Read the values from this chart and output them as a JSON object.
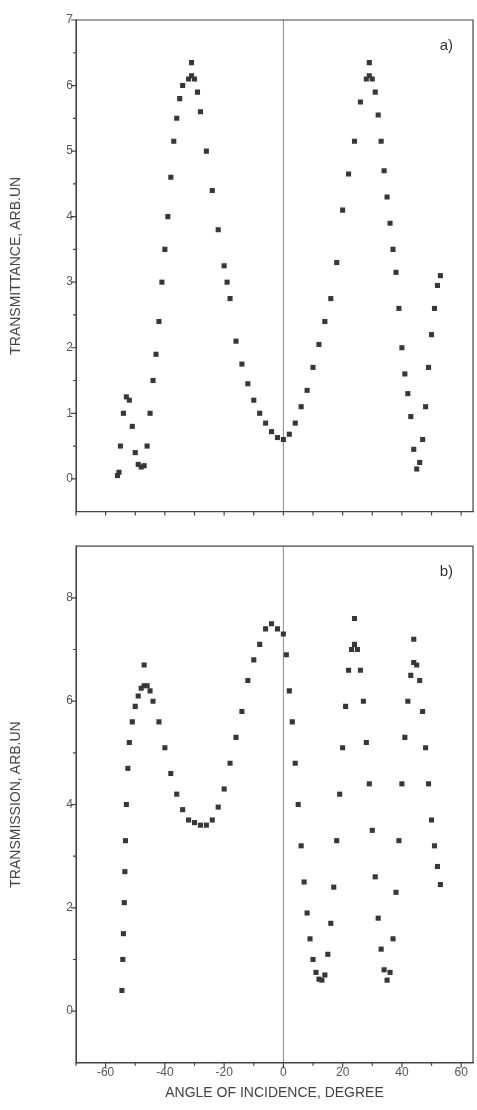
{
  "chart_data": [
    {
      "type": "scatter",
      "ylabel": "TRANSMITTANCE, ARB.UN",
      "annotations": [
        "a)"
      ],
      "marker": "square",
      "color": "#3a3636",
      "tick_labels": "y",
      "xlim": [
        -70,
        64
      ],
      "ylim": [
        -0.5,
        7
      ],
      "xticks": [
        {
          "value": -70,
          "label": null
        },
        {
          "value": -60,
          "label": null
        },
        {
          "value": -50,
          "label": null
        },
        {
          "value": -40,
          "label": null
        },
        {
          "value": -30,
          "label": null
        },
        {
          "value": -20,
          "label": null
        },
        {
          "value": -10,
          "label": null
        },
        {
          "value": 0,
          "label": null
        },
        {
          "value": 10,
          "label": null
        },
        {
          "value": 20,
          "label": null
        },
        {
          "value": 30,
          "label": null
        },
        {
          "value": 40,
          "label": null
        },
        {
          "value": 50,
          "label": null
        },
        {
          "value": 60,
          "label": null
        }
      ],
      "yticks": [
        0,
        {
          "value": 0.5,
          "label": null
        },
        1,
        {
          "value": 1.5,
          "label": null
        },
        2,
        {
          "value": 2.5,
          "label": null
        },
        3,
        {
          "value": 3.5,
          "label": null
        },
        4,
        {
          "value": 4.5,
          "label": null
        },
        5,
        {
          "value": 5.5,
          "label": null
        },
        6,
        {
          "value": 6.5,
          "label": null
        },
        7
      ],
      "ref_lines": [
        {
          "axis": "x",
          "value": 0,
          "color": "#8a8a8a"
        }
      ],
      "x": [
        -56,
        -55.5,
        -55,
        -54,
        -53,
        -52,
        -51,
        -50,
        -49,
        -48,
        -47,
        -46,
        -45,
        -44,
        -43,
        -42,
        -41,
        -40,
        -39,
        -38,
        -37,
        -36,
        -35,
        -34,
        -32,
        -31,
        -30,
        -29,
        -28,
        -26,
        -24,
        -22,
        -20,
        -19,
        -18,
        -16,
        -14,
        -12,
        -10,
        -8,
        -6,
        -4,
        -2,
        0,
        2,
        4,
        6,
        8,
        10,
        12,
        14,
        16,
        18,
        20,
        22,
        24,
        26,
        28,
        29,
        30,
        31,
        32,
        33,
        34,
        35,
        36,
        37,
        38,
        39,
        40,
        41,
        42,
        43,
        44,
        45,
        46,
        47,
        48,
        49,
        50,
        51,
        52,
        53,
        -31,
        29
      ],
      "values": [
        0.05,
        0.1,
        0.5,
        1.0,
        1.25,
        1.2,
        0.8,
        0.4,
        0.22,
        0.18,
        0.2,
        0.5,
        1.0,
        1.5,
        1.9,
        2.4,
        3.0,
        3.5,
        4.0,
        4.6,
        5.15,
        5.5,
        5.8,
        6.0,
        6.1,
        6.15,
        6.1,
        5.9,
        5.6,
        5.0,
        4.4,
        3.8,
        3.25,
        3.0,
        2.75,
        2.1,
        1.75,
        1.45,
        1.2,
        1.0,
        0.85,
        0.72,
        0.63,
        0.6,
        0.68,
        0.85,
        1.1,
        1.35,
        1.7,
        2.05,
        2.4,
        2.75,
        3.3,
        4.1,
        4.65,
        5.15,
        5.75,
        6.1,
        6.15,
        6.1,
        5.9,
        5.55,
        5.15,
        4.7,
        4.3,
        3.9,
        3.5,
        3.15,
        2.6,
        2.0,
        1.6,
        1.3,
        0.95,
        0.45,
        0.15,
        0.25,
        0.6,
        1.1,
        1.7,
        2.2,
        2.6,
        2.95,
        3.1,
        6.35,
        6.35
      ]
    },
    {
      "type": "scatter",
      "ylabel": "TRANSMISSION, ARB.UN",
      "xlabel": "ANGLE OF INCIDENCE, DEGREE",
      "annotations": [
        "b)"
      ],
      "marker": "square",
      "color": "#3a3636",
      "xlim": [
        -70,
        64
      ],
      "ylim": [
        -1,
        9
      ],
      "xticks": [
        {
          "value": -70,
          "label": null
        },
        -60,
        {
          "value": -50,
          "label": null
        },
        -40,
        {
          "value": -30,
          "label": null
        },
        -20,
        {
          "value": -10,
          "label": null
        },
        0,
        {
          "value": 10,
          "label": null
        },
        20,
        {
          "value": 30,
          "label": null
        },
        40,
        {
          "value": 50,
          "label": null
        },
        60
      ],
      "yticks": [
        0,
        {
          "value": 1,
          "label": null
        },
        2,
        {
          "value": 3,
          "label": null
        },
        4,
        {
          "value": 5,
          "label": null
        },
        6,
        {
          "value": 7,
          "label": null
        },
        8
      ],
      "ref_lines": [
        {
          "axis": "x",
          "value": 0,
          "color": "#8a8a8a"
        }
      ],
      "x": [
        -54.5,
        -54.2,
        -54,
        -53.7,
        -53.5,
        -53.3,
        -53,
        -52.5,
        -52,
        -51,
        -50,
        -49,
        -48,
        -47,
        -46,
        -45,
        -44,
        -42,
        -40,
        -38,
        -36,
        -34,
        -32,
        -30,
        -28,
        -26,
        -24,
        -22,
        -20,
        -18,
        -16,
        -14,
        -12,
        -10,
        -8,
        -6,
        -4,
        -2,
        0,
        1,
        2,
        3,
        4,
        5,
        6,
        7,
        8,
        9,
        10,
        11,
        12,
        13,
        14,
        15,
        16,
        17,
        18,
        19,
        20,
        21,
        22,
        23,
        24,
        25,
        26,
        27,
        28,
        29,
        30,
        31,
        32,
        33,
        34,
        35,
        36,
        37,
        38,
        39,
        40,
        41,
        42,
        43,
        44,
        45,
        46,
        47,
        48,
        49,
        50,
        51,
        52,
        53,
        -47,
        24,
        44
      ],
      "values": [
        0.4,
        1.0,
        1.5,
        2.1,
        2.7,
        3.3,
        4.0,
        4.7,
        5.2,
        5.6,
        5.9,
        6.1,
        6.25,
        6.3,
        6.3,
        6.2,
        6.0,
        5.6,
        5.1,
        4.6,
        4.2,
        3.9,
        3.7,
        3.65,
        3.6,
        3.6,
        3.7,
        3.95,
        4.3,
        4.8,
        5.3,
        5.8,
        6.4,
        6.8,
        7.1,
        7.4,
        7.5,
        7.4,
        7.3,
        6.9,
        6.2,
        5.6,
        4.8,
        4.0,
        3.2,
        2.5,
        1.9,
        1.4,
        1.0,
        0.75,
        0.62,
        0.6,
        0.7,
        1.1,
        1.7,
        2.4,
        3.3,
        4.2,
        5.1,
        5.9,
        6.6,
        7.0,
        7.1,
        7.0,
        6.6,
        6.0,
        5.2,
        4.4,
        3.5,
        2.6,
        1.8,
        1.2,
        0.8,
        0.6,
        0.75,
        1.4,
        2.3,
        3.3,
        4.4,
        5.3,
        6.0,
        6.5,
        6.75,
        6.7,
        6.4,
        5.8,
        5.1,
        4.4,
        3.7,
        3.2,
        2.8,
        2.45,
        6.7,
        7.6,
        7.2
      ]
    }
  ]
}
